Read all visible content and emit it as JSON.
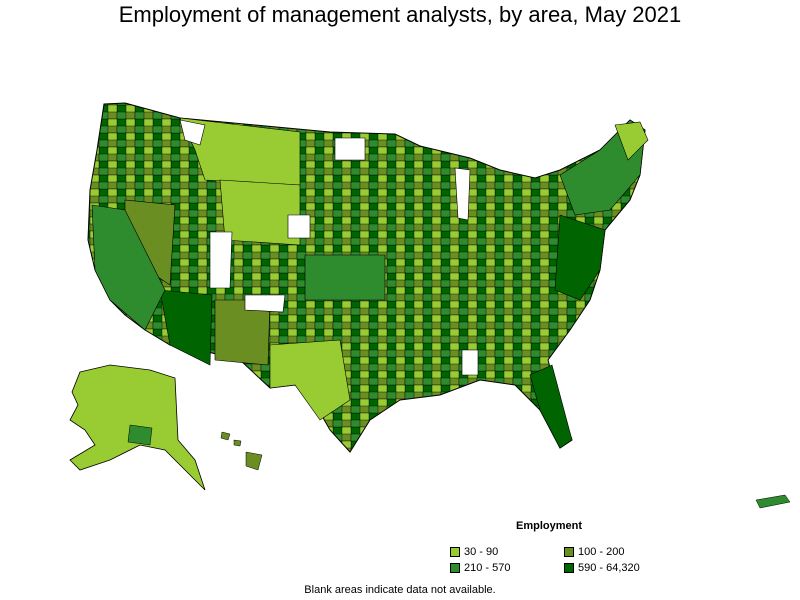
{
  "title": "Employment of management analysts, by area, May 2021",
  "legend": {
    "title": "Employment",
    "items": [
      {
        "label": "30 - 90",
        "color": "#99cc33"
      },
      {
        "label": "100 - 200",
        "color": "#6b8e23"
      },
      {
        "label": "210 - 570",
        "color": "#2e8b2e"
      },
      {
        "label": "590 - 64,320",
        "color": "#006400"
      }
    ]
  },
  "note": "Blank areas indicate data not available."
}
